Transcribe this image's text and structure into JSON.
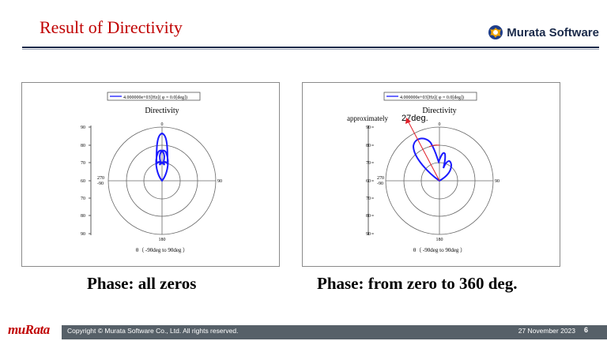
{
  "slide": {
    "title": "Result  of Directivity",
    "brand": "Murata Software",
    "caption_left": "Phase: all zeros",
    "caption_right": "Phase: from zero to 360 deg."
  },
  "plots": {
    "legend": "4.000000e+03[Hz]( φ = 0.0[deg])",
    "title": "Directivity",
    "top_label": "0",
    "right_label": "90",
    "bottom_label": "180",
    "left_label_top": "270",
    "left_label_bottom": "-90",
    "y_ticks": [
      "90",
      "80",
      "70",
      "60",
      "70",
      "80",
      "90"
    ],
    "xlabel": "θ（ -90deg to 90deg ）",
    "annotation_prefix": "approximately",
    "annotation_value": "27deg."
  },
  "chart_data": [
    {
      "type": "polar-line",
      "title": "Directivity",
      "series": [
        {
          "name": "4.000000e+03[Hz]( φ = 0.0[deg])"
        }
      ],
      "radial_ticks": [
        "90",
        "80",
        "70",
        "60"
      ],
      "angular_labels": [
        "0",
        "90",
        "180",
        "270",
        "-90"
      ],
      "main_lobe_direction_deg": 0
    },
    {
      "type": "polar-line",
      "title": "Directivity",
      "series": [
        {
          "name": "4.000000e+03[Hz]( φ = 0.0[deg])"
        }
      ],
      "radial_ticks": [
        "90",
        "80",
        "70",
        "60"
      ],
      "angular_labels": [
        "0",
        "90",
        "180",
        "270",
        "-90"
      ],
      "main_lobe_direction_deg": -27
    }
  ],
  "footer": {
    "logo": "muRata",
    "copyright": "Copyright © Murata Software Co., Ltd. All rights reserved.",
    "date": "27 November 2023",
    "page": "6"
  },
  "colors": {
    "title": "#c00000",
    "curve": "#1a1aff",
    "arrow": "#e0202a",
    "footer_bar": "#566068"
  }
}
